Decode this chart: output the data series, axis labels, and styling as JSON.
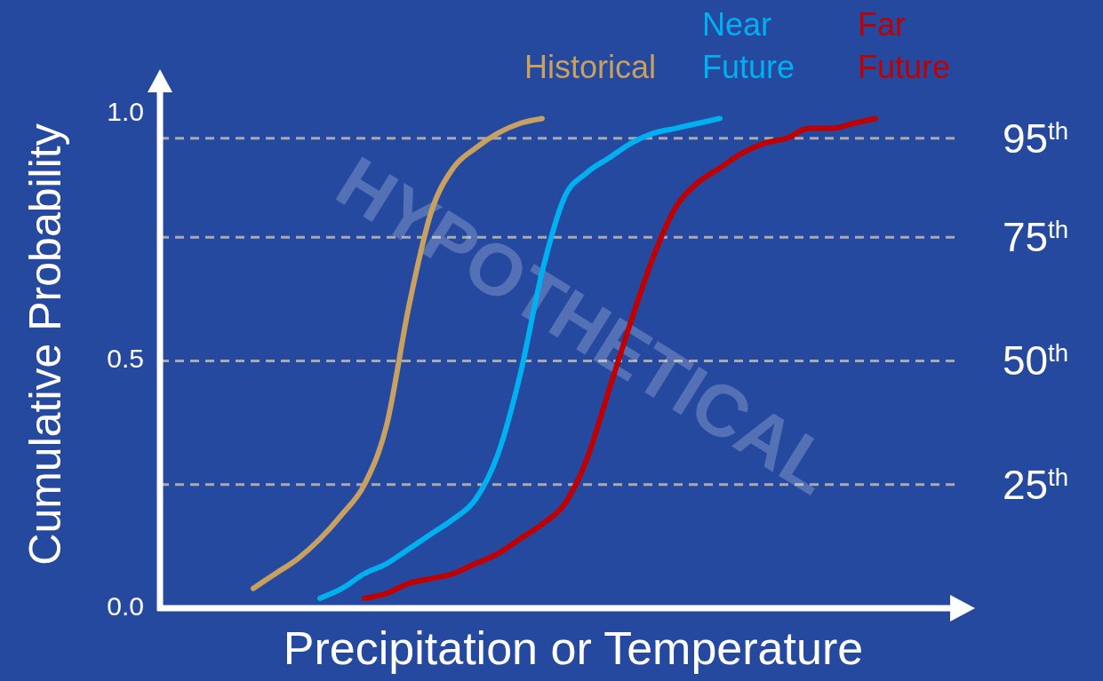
{
  "chart_data": {
    "type": "line",
    "xlabel": "Precipitation or Temperature",
    "ylabel": "Cumulative Probability",
    "categories": [
      null,
      null,
      null,
      null,
      null,
      null,
      null,
      null,
      null,
      null,
      null,
      null,
      null,
      null,
      null,
      null,
      null,
      null,
      null,
      null,
      null,
      null,
      null,
      null,
      null,
      null,
      null,
      null,
      null,
      null,
      null,
      null,
      null,
      null,
      null,
      null,
      null
    ],
    "series": [
      {
        "name": "Historical",
        "color": "#c8a060",
        "values": [
          null,
          null,
          null,
          null,
          0.04,
          0.07,
          0.1,
          0.14,
          0.19,
          0.25,
          0.37,
          0.61,
          0.8,
          0.89,
          0.93,
          0.96,
          0.98,
          0.99,
          null,
          null,
          null,
          null,
          null,
          null,
          null,
          null,
          null,
          null,
          null,
          null,
          null,
          null,
          null,
          null,
          null,
          null,
          null
        ]
      },
      {
        "name": "Near Future",
        "color": "#00b0f0",
        "values": [
          null,
          null,
          null,
          null,
          null,
          null,
          null,
          0.02,
          0.04,
          0.07,
          0.09,
          0.12,
          0.15,
          0.18,
          0.22,
          0.31,
          0.47,
          0.68,
          0.83,
          0.88,
          0.91,
          0.94,
          0.96,
          0.97,
          0.98,
          0.99,
          null,
          null,
          null,
          null,
          null,
          null,
          null,
          null,
          null,
          null,
          null
        ]
      },
      {
        "name": "Far Future",
        "color": "#c00000",
        "values": [
          null,
          null,
          null,
          null,
          null,
          null,
          null,
          null,
          null,
          0.02,
          0.03,
          0.05,
          0.06,
          0.07,
          0.09,
          0.11,
          0.14,
          0.17,
          0.21,
          0.3,
          0.44,
          0.58,
          0.71,
          0.81,
          0.86,
          0.89,
          0.92,
          0.94,
          0.95,
          0.97,
          0.97,
          0.98,
          0.99,
          null,
          null,
          null,
          null
        ]
      }
    ],
    "ylim": [
      0,
      1.05
    ],
    "yticks": [
      {
        "value": 0,
        "label": "0.0"
      },
      0.5,
      {
        "value": 1,
        "label": "1.0"
      }
    ],
    "tick_labels": "y",
    "ref_lines": [
      {
        "axis": "y",
        "value": 0.95,
        "label": "95$^{th}$",
        "color": "#aaaaaa",
        "line_style": "dashed"
      },
      {
        "axis": "y",
        "value": 0.75,
        "label": "75$^{th}$",
        "color": "#aaaaaa",
        "line_style": "dashed"
      },
      {
        "axis": "y",
        "value": 0.5,
        "label": "50$^{th}$",
        "color": "#aaaaaa",
        "line_style": "dashed"
      },
      {
        "axis": "y",
        "value": 0.25,
        "label": "25$^{th}$",
        "color": "#aaaaaa",
        "line_style": "dashed"
      }
    ],
    "annotations": [
      "HYPOTHETICAL"
    ]
  }
}
